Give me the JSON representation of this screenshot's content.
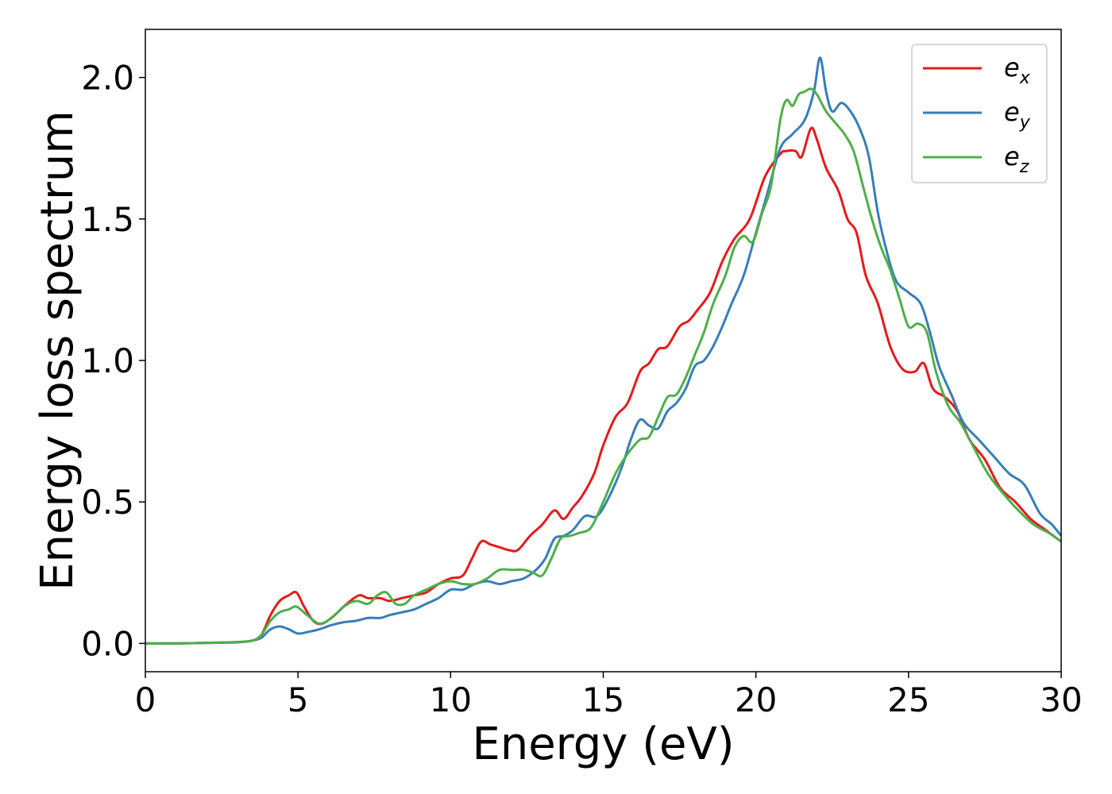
{
  "chart_data": {
    "type": "line",
    "title": "",
    "xlabel": "Energy (eV)",
    "ylabel": "Energy loss spectrum",
    "xlim": [
      0,
      30
    ],
    "ylim": [
      -0.1,
      2.17
    ],
    "xticks": [
      0,
      5,
      10,
      15,
      20,
      25,
      30
    ],
    "xtick_labels": [
      "0",
      "5",
      "10",
      "15",
      "20",
      "25",
      "30"
    ],
    "yticks": [
      0.0,
      0.5,
      1.0,
      1.5,
      2.0
    ],
    "ytick_labels": [
      "0.0",
      "0.5",
      "1.0",
      "1.5",
      "2.0"
    ],
    "grid": false,
    "legend": {
      "position": "top-right",
      "entries": [
        {
          "base": "e",
          "sub": "x",
          "color": "#e41a1c"
        },
        {
          "base": "e",
          "sub": "y",
          "color": "#377eb8"
        },
        {
          "base": "e",
          "sub": "z",
          "color": "#4daf4a"
        }
      ]
    },
    "series": [
      {
        "name": "e_x",
        "color": "#e41a1c",
        "x": [
          0,
          1,
          2,
          3,
          3.5,
          3.8,
          4.1,
          4.4,
          4.7,
          4.95,
          5.2,
          5.5,
          5.8,
          6.2,
          6.6,
          7.0,
          7.3,
          7.7,
          8.0,
          8.4,
          8.8,
          9.2,
          9.6,
          10.0,
          10.4,
          10.7,
          11.0,
          11.3,
          11.6,
          11.9,
          12.2,
          12.6,
          13.0,
          13.4,
          13.7,
          14.0,
          14.3,
          14.7,
          15.0,
          15.4,
          15.8,
          16.2,
          16.5,
          16.8,
          17.1,
          17.5,
          17.8,
          18.1,
          18.5,
          18.9,
          19.3,
          19.8,
          20.3,
          20.8,
          21.0,
          21.3,
          21.5,
          21.8,
          22.0,
          22.3,
          22.7,
          23.0,
          23.3,
          23.6,
          24.0,
          24.4,
          24.8,
          25.2,
          25.5,
          25.8,
          26.2,
          26.6,
          27.0,
          27.5,
          28.0,
          28.5,
          29.0,
          29.5,
          30.0
        ],
        "y": [
          0,
          0,
          0.002,
          0.005,
          0.01,
          0.03,
          0.1,
          0.15,
          0.17,
          0.18,
          0.13,
          0.08,
          0.07,
          0.1,
          0.14,
          0.17,
          0.16,
          0.16,
          0.15,
          0.16,
          0.17,
          0.18,
          0.21,
          0.23,
          0.24,
          0.3,
          0.36,
          0.35,
          0.34,
          0.33,
          0.33,
          0.38,
          0.42,
          0.47,
          0.44,
          0.48,
          0.52,
          0.6,
          0.7,
          0.8,
          0.85,
          0.96,
          0.99,
          1.04,
          1.05,
          1.12,
          1.14,
          1.18,
          1.24,
          1.35,
          1.43,
          1.5,
          1.65,
          1.73,
          1.74,
          1.74,
          1.72,
          1.82,
          1.78,
          1.68,
          1.6,
          1.5,
          1.45,
          1.3,
          1.2,
          1.05,
          0.97,
          0.96,
          0.99,
          0.9,
          0.87,
          0.82,
          0.72,
          0.65,
          0.55,
          0.5,
          0.44,
          0.4,
          0.36
        ]
      },
      {
        "name": "e_y",
        "color": "#377eb8",
        "x": [
          0,
          1,
          2,
          3,
          3.5,
          3.8,
          4.1,
          4.4,
          4.7,
          5.0,
          5.3,
          5.7,
          6.1,
          6.5,
          6.9,
          7.3,
          7.7,
          8.0,
          8.4,
          8.8,
          9.2,
          9.6,
          10.0,
          10.4,
          10.8,
          11.2,
          11.6,
          12.0,
          12.4,
          12.8,
          13.1,
          13.4,
          13.7,
          14.0,
          14.4,
          14.8,
          15.2,
          15.6,
          15.9,
          16.2,
          16.5,
          16.8,
          17.1,
          17.4,
          17.7,
          18.0,
          18.3,
          18.6,
          18.9,
          19.2,
          19.6,
          20.0,
          20.4,
          20.8,
          21.2,
          21.6,
          21.9,
          22.1,
          22.3,
          22.5,
          22.8,
          23.1,
          23.4,
          23.7,
          24.0,
          24.3,
          24.6,
          25.0,
          25.4,
          25.7,
          26.0,
          26.4,
          26.8,
          27.3,
          27.8,
          28.3,
          28.8,
          29.3,
          29.7,
          30.0
        ],
        "y": [
          0,
          0,
          0.002,
          0.004,
          0.01,
          0.02,
          0.05,
          0.06,
          0.05,
          0.035,
          0.04,
          0.05,
          0.065,
          0.075,
          0.08,
          0.09,
          0.09,
          0.1,
          0.11,
          0.12,
          0.14,
          0.16,
          0.19,
          0.19,
          0.21,
          0.22,
          0.21,
          0.22,
          0.23,
          0.26,
          0.3,
          0.37,
          0.38,
          0.4,
          0.45,
          0.45,
          0.52,
          0.62,
          0.72,
          0.79,
          0.77,
          0.76,
          0.82,
          0.85,
          0.9,
          0.98,
          1.0,
          1.05,
          1.12,
          1.2,
          1.3,
          1.45,
          1.6,
          1.75,
          1.8,
          1.85,
          1.95,
          2.07,
          1.95,
          1.88,
          1.91,
          1.88,
          1.82,
          1.72,
          1.52,
          1.38,
          1.28,
          1.24,
          1.2,
          1.1,
          0.98,
          0.88,
          0.78,
          0.72,
          0.66,
          0.6,
          0.56,
          0.46,
          0.42,
          0.38
        ]
      },
      {
        "name": "e_z",
        "color": "#4daf4a",
        "x": [
          0,
          1,
          2,
          3,
          3.5,
          3.8,
          4.1,
          4.4,
          4.7,
          4.95,
          5.3,
          5.7,
          6.1,
          6.5,
          6.9,
          7.3,
          7.6,
          7.9,
          8.2,
          8.5,
          8.8,
          9.2,
          9.6,
          10.0,
          10.4,
          10.8,
          11.2,
          11.6,
          12.0,
          12.4,
          12.7,
          13.0,
          13.3,
          13.6,
          13.9,
          14.2,
          14.6,
          15.0,
          15.4,
          15.8,
          16.2,
          16.5,
          16.8,
          17.1,
          17.4,
          17.7,
          18.0,
          18.3,
          18.6,
          19.0,
          19.3,
          19.6,
          19.9,
          20.2,
          20.5,
          20.8,
          21.0,
          21.2,
          21.4,
          21.6,
          21.8,
          22.0,
          22.3,
          22.6,
          22.9,
          23.2,
          23.5,
          23.8,
          24.1,
          24.4,
          24.7,
          25.0,
          25.3,
          25.6,
          25.9,
          26.3,
          26.7,
          27.1,
          27.6,
          28.1,
          28.6,
          29.1,
          29.6,
          30.0
        ],
        "y": [
          0,
          0,
          0.002,
          0.005,
          0.01,
          0.03,
          0.08,
          0.11,
          0.12,
          0.13,
          0.1,
          0.07,
          0.09,
          0.13,
          0.15,
          0.14,
          0.17,
          0.18,
          0.14,
          0.14,
          0.17,
          0.19,
          0.21,
          0.22,
          0.21,
          0.21,
          0.23,
          0.26,
          0.26,
          0.26,
          0.25,
          0.24,
          0.3,
          0.37,
          0.38,
          0.39,
          0.41,
          0.5,
          0.6,
          0.67,
          0.72,
          0.73,
          0.8,
          0.87,
          0.88,
          0.94,
          1.02,
          1.1,
          1.2,
          1.3,
          1.4,
          1.44,
          1.42,
          1.52,
          1.62,
          1.85,
          1.92,
          1.9,
          1.94,
          1.95,
          1.96,
          1.94,
          1.88,
          1.84,
          1.8,
          1.74,
          1.62,
          1.5,
          1.4,
          1.32,
          1.22,
          1.12,
          1.13,
          1.1,
          0.96,
          0.84,
          0.78,
          0.7,
          0.6,
          0.53,
          0.47,
          0.42,
          0.39,
          0.36
        ]
      }
    ]
  }
}
